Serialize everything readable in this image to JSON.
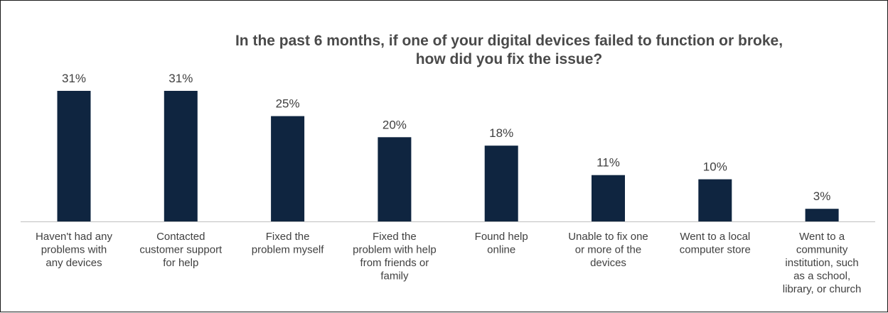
{
  "chart_data": {
    "type": "bar",
    "title_lines": [
      "In the past 6 months, if one of your digital devices failed to function or broke,",
      "how did you fix the issue?"
    ],
    "categories": [
      [
        "Haven't had any",
        "problems with",
        "any devices"
      ],
      [
        "Contacted",
        "customer support",
        "for help"
      ],
      [
        "Fixed the",
        "problem myself"
      ],
      [
        "Fixed the",
        "problem with help",
        "from friends or",
        "family"
      ],
      [
        "Found help",
        "online"
      ],
      [
        "Unable to fix one",
        "or more of the",
        "devices"
      ],
      [
        "Went to a local",
        "computer store"
      ],
      [
        "Went to a",
        "community",
        "institution, such",
        "as a school,",
        "library, or church"
      ]
    ],
    "values": [
      31,
      31,
      25,
      20,
      18,
      11,
      10,
      3
    ],
    "value_labels": [
      "31%",
      "31%",
      "25%",
      "20%",
      "18%",
      "11%",
      "10%",
      "3%"
    ],
    "unit": "%",
    "ylim": [
      0,
      31
    ],
    "bar_color": "#0f2540",
    "grid": false,
    "legend": "none"
  }
}
